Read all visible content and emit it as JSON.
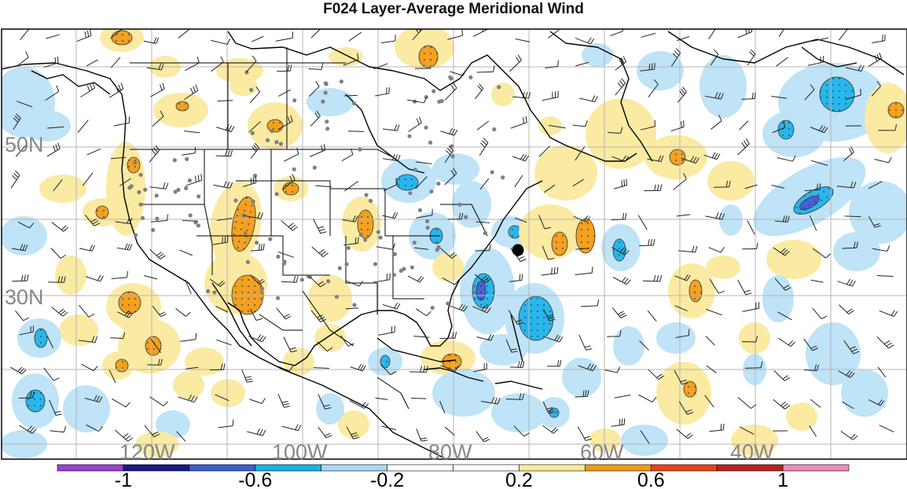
{
  "title": "F024 Layer-Average Meridional Wind",
  "lat_labels": [
    "50N",
    "30N"
  ],
  "lon_labels": [
    "120W",
    "100W",
    "80W",
    "60W",
    "40W"
  ],
  "colorbar": {
    "colors": [
      "#9b3fd0",
      "#1a1a8c",
      "#3a5fcd",
      "#1ab0e8",
      "#a9d8f5",
      "#ffffff",
      "#ffffff",
      "#fbe99a",
      "#f29a1a",
      "#e8431a",
      "#b5221e",
      "#f08cbf"
    ],
    "tick_labels": [
      "-1",
      "-0.6",
      "-0.2",
      "0.2",
      "0.6",
      "1"
    ]
  },
  "colors": {
    "neg_light": "#bfe3f7",
    "neg_mid": "#29b6ec",
    "neg_strong": "#4a60d8",
    "pos_light": "#fbeaa2",
    "pos_mid": "#f4a020",
    "grid": "#b5b5b5",
    "label": "#888888"
  }
}
